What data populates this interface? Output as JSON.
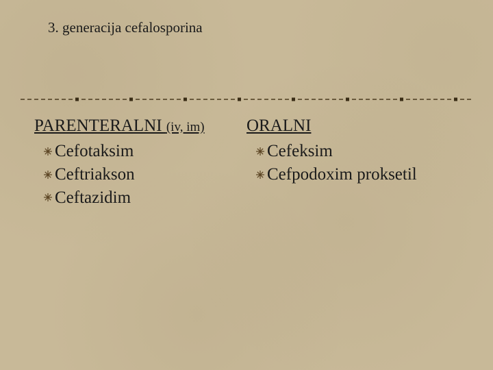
{
  "title": "3. generacija cefalosporina",
  "divider": {
    "stroke_color": "#4a3a1e",
    "dot_color": "#4a3a1e",
    "square_color": "#3a2d16"
  },
  "bullet": {
    "color": "#5a4322"
  },
  "left": {
    "heading_main": "PARENTERALNI ",
    "heading_sub": "(iv, im)",
    "items": [
      "Cefotaksim",
      "Ceftriakson",
      "Ceftazidim"
    ]
  },
  "right": {
    "heading_main": "ORALNI",
    "items": [
      "Cefeksim",
      "Cefpodoxim proksetil"
    ]
  },
  "colors": {
    "background": "#c8b998",
    "text": "#1a1a1a"
  }
}
